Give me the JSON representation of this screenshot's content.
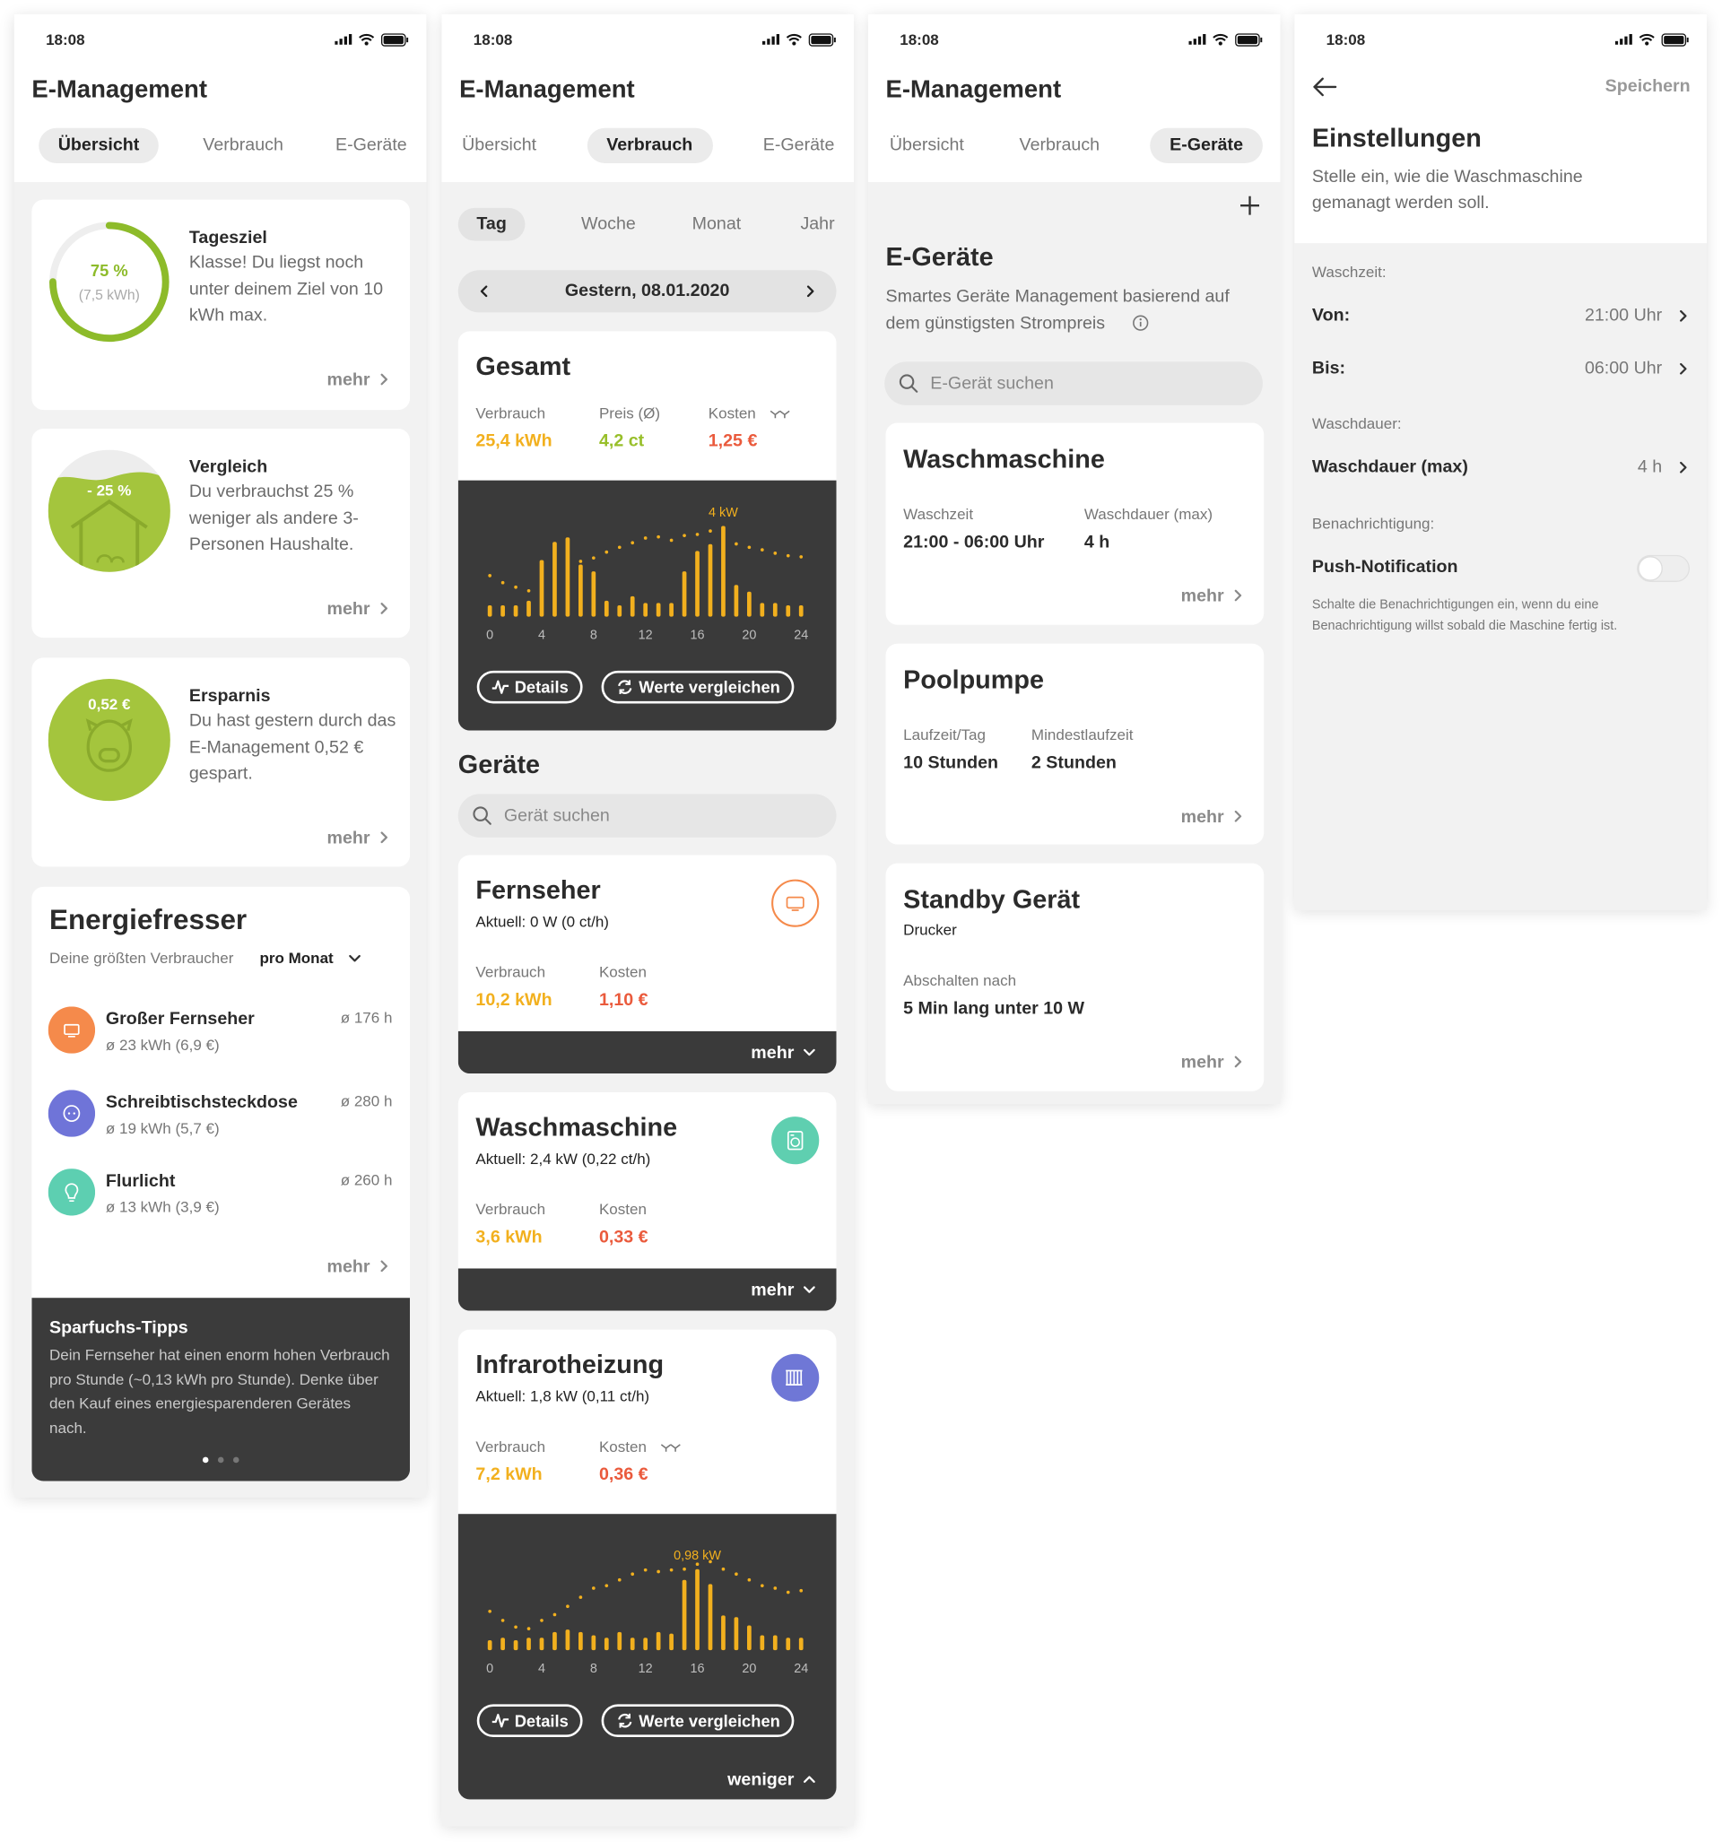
{
  "status_time": "18:08",
  "app_title": "E-Management",
  "tabs": [
    "Übersicht",
    "Verbrauch",
    "E-Geräte"
  ],
  "more": "mehr",
  "overview": {
    "goal": {
      "title": "Tagesziel",
      "percent": 75,
      "percent_label": "75 %",
      "amount": "(7,5 kWh)",
      "text": "Klasse! Du liegst noch unter deinem Ziel von 10 kWh max."
    },
    "comparison": {
      "title": "Vergleich",
      "badge": "- 25 %",
      "text": "Du verbrauchst 25 % weniger als andere 3-Personen Haushalte."
    },
    "savings": {
      "title": "Ersparnis",
      "badge": "0,52 €",
      "text": "Du hast gestern durch das E-Management 0,52 € gespart."
    },
    "top_consumers": {
      "title": "Energiefresser",
      "subtitle": "Deine größten Verbraucher",
      "period": "pro Monat",
      "items": [
        {
          "name": "Großer Fernseher",
          "detail": "ø 23 kWh (6,9 €)",
          "hours": "ø 176 h",
          "color": "#f58a4b"
        },
        {
          "name": "Schreibtischsteckdose",
          "detail": "ø 19 kWh (5,7 €)",
          "hours": "ø 280 h",
          "color": "#6f74d8"
        },
        {
          "name": "Flurlicht",
          "detail": "ø 13 kWh (3,9 €)",
          "hours": "ø 260 h",
          "color": "#5dcfb1"
        }
      ]
    },
    "tips": {
      "title": "Sparfuchs-Tipps",
      "text": "Dein Fernseher hat einen enorm hohen Verbrauch pro Stunde (~0,13 kWh pro Stunde). Denke über den Kauf eines energiesparenderen Gerätes nach."
    }
  },
  "consumption": {
    "periods": [
      "Tag",
      "Woche",
      "Monat",
      "Jahr"
    ],
    "date": "Gestern, 08.01.2020",
    "total": {
      "title": "Gesamt",
      "stats": [
        {
          "label": "Verbrauch",
          "value": "25,4 kWh",
          "color": "#f2b01e"
        },
        {
          "label": "Preis (Ø)",
          "value": "4,2 ct",
          "color": "#98bf2a"
        },
        {
          "label": "Kosten",
          "value": "1,25 €",
          "color": "#ea5a3c"
        }
      ]
    },
    "buttons": [
      "Details",
      "Werte vergleichen"
    ],
    "devices_title": "Geräte",
    "search": "Gerät suchen",
    "devices": [
      {
        "name": "Fernseher",
        "current": "Aktuell: 0 W (0 ct/h)",
        "color": "#f58a4b",
        "filled": false,
        "expanded": false,
        "stats": [
          {
            "label": "Verbrauch",
            "value": "10,2 kWh",
            "color": "#f2b01e"
          },
          {
            "label": "Kosten",
            "value": "1,10 €",
            "color": "#ea5a3c"
          }
        ]
      },
      {
        "name": "Waschmaschine",
        "current": "Aktuell: 2,4 kW (0,22 ct/h)",
        "color": "#5fcfb0",
        "filled": true,
        "expanded": false,
        "stats": [
          {
            "label": "Verbrauch",
            "value": "3,6 kWh",
            "color": "#f2b01e"
          },
          {
            "label": "Kosten",
            "value": "0,33 €",
            "color": "#ea5a3c"
          }
        ]
      },
      {
        "name": "Infrarotheizung",
        "current": "Aktuell: 1,8 kW (0,11 ct/h)",
        "color": "#6f77d6",
        "filled": true,
        "expanded": true,
        "stats": [
          {
            "label": "Verbrauch",
            "value": "7,2 kWh",
            "color": "#f2b01e"
          },
          {
            "label": "Kosten",
            "value": "0,36 €",
            "color": "#ea5a3c"
          }
        ]
      }
    ],
    "less": "weniger"
  },
  "device_management": {
    "title": "E-Geräte",
    "text": "Smartes Geräte Management basierend auf dem günstigsten Strompreis",
    "search": "E-Gerät suchen",
    "items": [
      {
        "name": "Waschmaschine",
        "fields": [
          {
            "label": "Waschzeit",
            "value": "21:00 - 06:00 Uhr"
          },
          {
            "label": "Waschdauer (max)",
            "value": "4 h"
          }
        ]
      },
      {
        "name": "Poolpumpe",
        "fields": [
          {
            "label": "Laufzeit/Tag",
            "value": "10 Stunden"
          },
          {
            "label": "Mindestlaufzeit",
            "value": "2 Stunden"
          }
        ]
      },
      {
        "name": "Standby Gerät",
        "subtitle": "Drucker",
        "fields": [
          {
            "label": "Abschalten nach",
            "value": "5 Min lang unter 10 W"
          }
        ]
      }
    ]
  },
  "settings": {
    "save": "Speichern",
    "title": "Einstellungen",
    "text": "Stelle ein, wie die Waschmaschine gemanagt werden soll.",
    "sections": [
      {
        "label": "Waschzeit:",
        "rows": [
          {
            "label": "Von:",
            "value": "21:00 Uhr"
          },
          {
            "label": "Bis:",
            "value": "06:00 Uhr"
          }
        ]
      },
      {
        "label": "Waschdauer:",
        "rows": [
          {
            "label": "Waschdauer (max)",
            "value": "4 h"
          }
        ]
      },
      {
        "label": "Benachrichtigung:",
        "rows": [
          {
            "label": "Push-Notification",
            "enabled": false
          }
        ]
      }
    ],
    "note": "Schalte die Benachrichtigungen ein, wenn du eine Benachrichtigung willst sobald die Maschine fertig ist."
  },
  "chart_data": [
    {
      "type": "bar",
      "annotation": "4 kW",
      "x": [
        0,
        1,
        2,
        3,
        4,
        5,
        6,
        7,
        8,
        9,
        10,
        11,
        12,
        13,
        14,
        15,
        16,
        17,
        18,
        19,
        20,
        21,
        22,
        23,
        24
      ],
      "xlim": [
        0,
        24
      ],
      "xticks": [
        0,
        4,
        8,
        12,
        16,
        20,
        24
      ],
      "ylim": [
        0,
        4.2
      ],
      "series": [
        {
          "color": "#f2b01e",
          "values": [
            0.5,
            0.5,
            0.5,
            0.7,
            2.5,
            3.3,
            3.5,
            2.3,
            2,
            0.7,
            0.5,
            0.9,
            0.6,
            0.6,
            0.6,
            2,
            2.9,
            3.2,
            4,
            1.4,
            1.1,
            0.6,
            0.6,
            0.5,
            0.5
          ]
        },
        {
          "color": "#f2b01e",
          "style": "dots",
          "values": [
            1.81,
            1.5,
            1.3,
            1.14,
            1.5,
            1.81,
            2.12,
            2.44,
            2.59,
            2.85,
            3.06,
            3.26,
            3.47,
            3.52,
            3.37,
            3.58,
            3.63,
            3.78,
            3.37,
            3.21,
            3.06,
            2.95,
            2.8,
            2.69,
            2.64
          ]
        }
      ]
    },
    {
      "type": "bar",
      "annotation": "0,98 kW",
      "x": [
        0,
        1,
        2,
        3,
        4,
        5,
        6,
        7,
        8,
        9,
        10,
        11,
        12,
        13,
        14,
        15,
        16,
        17,
        18,
        19,
        20,
        21,
        22,
        23,
        24
      ],
      "xlim": [
        0,
        24
      ],
      "xticks": [
        0,
        4,
        8,
        12,
        16,
        20,
        24
      ],
      "ylim": [
        0,
        1.15
      ],
      "series": [
        {
          "color": "#f2b01e",
          "values": [
            0.12,
            0.15,
            0.12,
            0.15,
            0.15,
            0.22,
            0.25,
            0.22,
            0.18,
            0.15,
            0.22,
            0.15,
            0.15,
            0.22,
            0.2,
            0.85,
            0.98,
            0.8,
            0.42,
            0.4,
            0.3,
            0.18,
            0.18,
            0.15,
            0.15
          ]
        },
        {
          "color": "#f2b01e",
          "style": "dots",
          "values": [
            0.47,
            0.36,
            0.28,
            0.26,
            0.36,
            0.43,
            0.53,
            0.64,
            0.75,
            0.78,
            0.85,
            0.92,
            0.97,
            0.95,
            0.97,
            0.98,
            1.04,
            1.07,
            0.98,
            0.92,
            0.85,
            0.78,
            0.75,
            0.7,
            0.72
          ]
        }
      ]
    }
  ]
}
